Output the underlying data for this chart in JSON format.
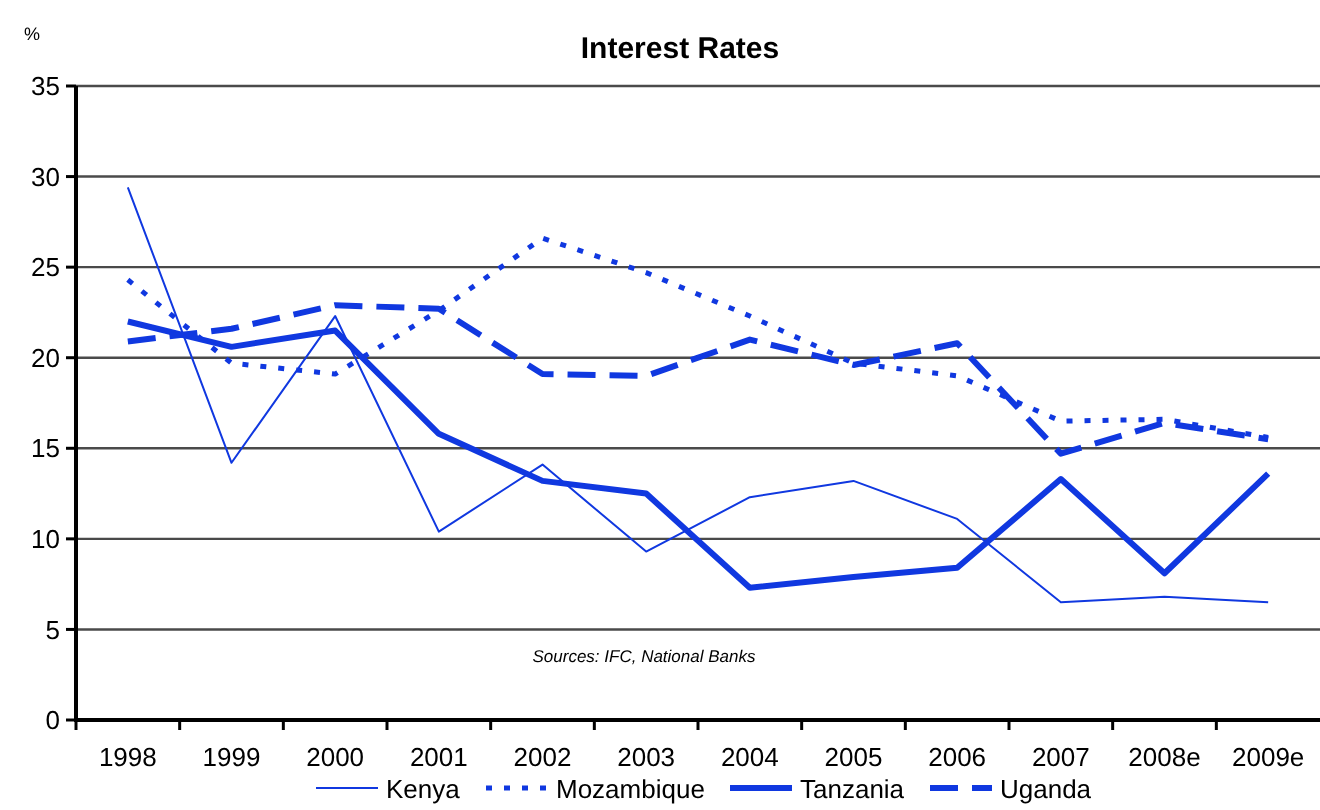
{
  "chart_data": {
    "type": "line",
    "title": "Interest Rates",
    "ylabel": "%",
    "categories": [
      "1998",
      "1999",
      "2000",
      "2001",
      "2002",
      "2003",
      "2004",
      "2005",
      "2006",
      "2007",
      "2008e",
      "2009e"
    ],
    "series": [
      {
        "name": "Kenya",
        "color": "#1038e0",
        "line_style": "solid",
        "values": [
          29.4,
          14.2,
          22.3,
          10.4,
          14.1,
          9.3,
          12.3,
          13.2,
          11.1,
          6.5,
          6.8,
          6.5
        ]
      },
      {
        "name": "Mozambique",
        "color": "#1038e0",
        "line_style": "dotted",
        "values": [
          24.3,
          19.7,
          19.1,
          22.6,
          26.6,
          24.7,
          22.3,
          19.7,
          19.0,
          16.5,
          16.6,
          15.6
        ]
      },
      {
        "name": "Tanzania",
        "color": "#1038e0",
        "line_style": "solid",
        "values": [
          22.0,
          20.6,
          21.5,
          15.8,
          13.2,
          12.5,
          7.3,
          7.9,
          8.4,
          13.3,
          8.1,
          13.6
        ]
      },
      {
        "name": "Uganda",
        "color": "#1038e0",
        "line_style": "dashed",
        "values": [
          20.9,
          21.6,
          22.9,
          22.7,
          19.1,
          19.0,
          21.0,
          19.6,
          20.8,
          14.7,
          16.4,
          15.5
        ]
      }
    ],
    "ylim": [
      0,
      35
    ],
    "yticks": [
      0,
      5,
      10,
      15,
      20,
      25,
      30,
      35
    ],
    "grid": "y",
    "legend": "bottom",
    "marker": "none",
    "annotations": [
      "Sources: IFC, National Banks"
    ]
  }
}
